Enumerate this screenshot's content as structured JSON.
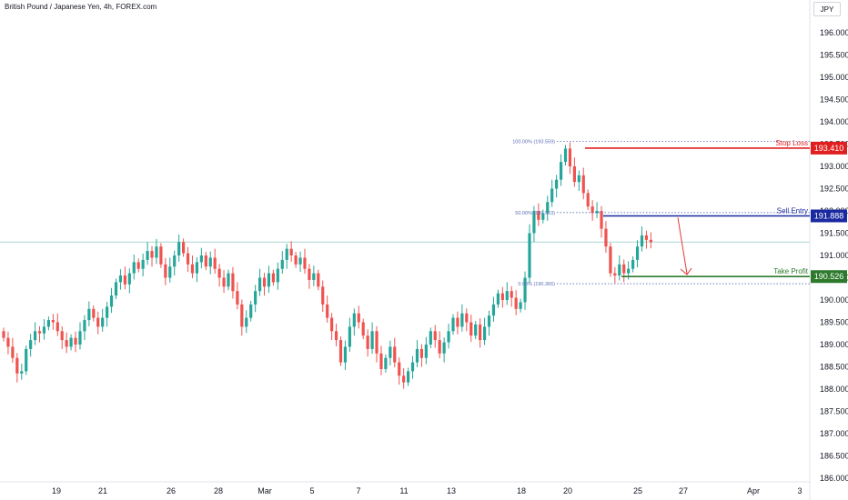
{
  "header": {
    "title": "British Pound / Japanese Yen, 4h, FOREX.com",
    "currency": "JPY"
  },
  "colors": {
    "up": "#26a69a",
    "down": "#ef5350",
    "stop": "#e02020",
    "entry": "#1a2aa0",
    "profit": "#2d7a2d",
    "fib": "#5b6fb5",
    "arrow": "#e53935",
    "last": "#a8d8d0"
  },
  "chart_data": {
    "type": "candlestick",
    "title": "British Pound / Japanese Yen, 4h, FOREX.com",
    "ylim": [
      185.9,
      196.6
    ],
    "y_ticks": [
      "196.000",
      "195.500",
      "195.000",
      "194.500",
      "194.000",
      "193.500",
      "193.000",
      "192.500",
      "192.000",
      "191.500",
      "191.000",
      "190.500",
      "190.000",
      "189.500",
      "189.000",
      "188.500",
      "188.000",
      "187.500",
      "187.000",
      "186.500",
      "186.000"
    ],
    "x_ticks": [
      "19",
      "21",
      "26",
      "28",
      "Mar",
      "5",
      "7",
      "11",
      "13",
      "18",
      "20",
      "25",
      "27",
      "Apr",
      "3"
    ],
    "last_price": 191.3,
    "levels": [
      {
        "label": "Stop Loss",
        "value": "193.410"
      },
      {
        "label": "Sell Entry",
        "value": "191.888"
      },
      {
        "label": "Take Profit",
        "value": "190.526"
      }
    ],
    "fib": [
      {
        "label": "100.00% (193.559)",
        "value": 193.559
      },
      {
        "label": "50.00% (191.963)",
        "value": 191.963
      },
      {
        "label": "0.00% (190.366)",
        "value": 190.366
      }
    ],
    "closes": [
      189.15,
      188.95,
      188.7,
      188.35,
      188.4,
      188.9,
      189.1,
      189.3,
      189.25,
      189.4,
      189.55,
      189.5,
      189.3,
      189.1,
      188.95,
      189.15,
      189.0,
      189.3,
      189.55,
      189.8,
      189.6,
      189.4,
      189.6,
      189.85,
      190.1,
      190.4,
      190.55,
      190.35,
      190.6,
      190.85,
      190.7,
      190.9,
      191.1,
      190.95,
      191.2,
      190.8,
      190.5,
      190.75,
      191.0,
      191.3,
      191.05,
      190.8,
      190.6,
      190.85,
      191.0,
      190.75,
      190.95,
      190.7,
      190.5,
      190.3,
      190.6,
      190.2,
      189.9,
      189.4,
      189.6,
      189.9,
      190.2,
      190.5,
      190.3,
      190.6,
      190.4,
      190.7,
      190.9,
      191.15,
      191.0,
      190.8,
      190.95,
      190.7,
      190.45,
      190.6,
      190.3,
      189.9,
      189.6,
      189.3,
      189.1,
      188.6,
      188.95,
      189.4,
      189.7,
      189.5,
      189.2,
      188.9,
      189.3,
      188.8,
      188.45,
      188.7,
      188.95,
      188.6,
      188.3,
      188.15,
      188.4,
      188.6,
      188.9,
      188.7,
      189.0,
      189.3,
      189.1,
      188.8,
      189.05,
      189.3,
      189.6,
      189.4,
      189.7,
      189.5,
      189.2,
      189.45,
      189.1,
      189.4,
      189.65,
      189.9,
      190.15,
      190.0,
      190.2,
      190.05,
      189.8,
      189.95,
      190.5,
      191.5,
      192.0,
      191.8,
      191.95,
      192.2,
      192.5,
      192.7,
      193.1,
      193.4,
      193.0,
      192.65,
      192.8,
      192.4,
      192.1,
      191.95,
      192.0,
      191.6,
      191.2,
      190.6,
      190.55,
      190.8,
      190.6,
      190.7,
      190.9,
      191.2,
      191.45,
      191.35,
      191.3
    ]
  }
}
